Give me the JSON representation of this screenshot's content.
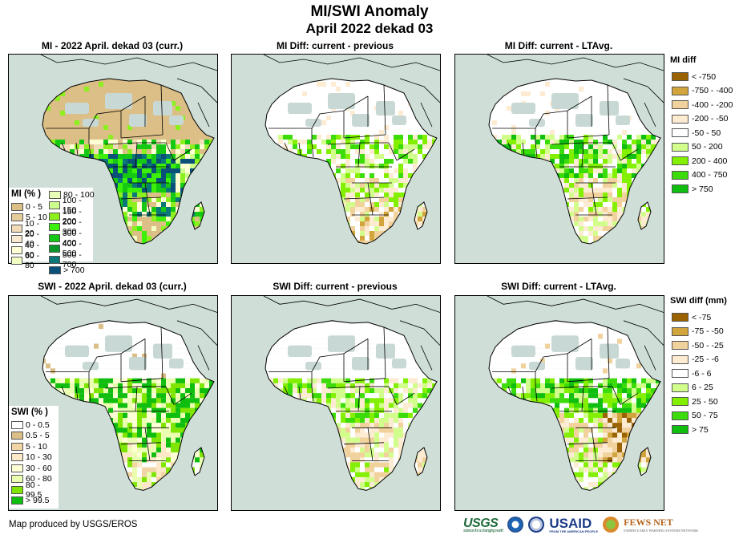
{
  "header": {
    "title": "MI/SWI Anomaly",
    "subtitle": "April 2022 dekad 03"
  },
  "colors": {
    "ocean": "#cfdfd8",
    "no_data_gray": "#c8d8d4"
  },
  "panels": [
    {
      "id": "mi-current",
      "title": "MI - 2022 April. dekad 03 (curr.)",
      "theme": "mi_current"
    },
    {
      "id": "mi-diff-previous",
      "title": "MI Diff: current - previous",
      "theme": "diff_prev"
    },
    {
      "id": "mi-diff-ltavg",
      "title": "MI Diff: current - LTAvg.",
      "theme": "diff_lta"
    },
    {
      "id": "swi-current",
      "title": "SWI - 2022 April. dekad 03 (curr.)",
      "theme": "swi_current"
    },
    {
      "id": "swi-diff-previous",
      "title": "SWI Diff: current - previous",
      "theme": "diff_prev2"
    },
    {
      "id": "swi-diff-ltavg",
      "title": "SWI Diff: current - LTAvg.",
      "theme": "swi_lta"
    }
  ],
  "legends": {
    "mi_percent": {
      "title": "MI (% )",
      "col1": [
        {
          "label": "0 - 5",
          "color": "#dcbf87"
        },
        {
          "label": "5 - 10",
          "color": "#e6cc9a"
        },
        {
          "label": "10 - 20",
          "color": "#f2dcb8"
        },
        {
          "label": "20 - 40",
          "color": "#f9e9d2"
        },
        {
          "label": "40 - 60",
          "color": "#ffffd6"
        },
        {
          "label": "60 - 80",
          "color": "#f2ffc2"
        }
      ],
      "col2": [
        {
          "label": "80 - 100",
          "color": "#e8ffb8"
        },
        {
          "label": "100 - 150",
          "color": "#ccff8c"
        },
        {
          "label": "150 - 200",
          "color": "#8cf01e"
        },
        {
          "label": "200 - 300",
          "color": "#3cf00a"
        },
        {
          "label": "300 - 400",
          "color": "#14c814"
        },
        {
          "label": "400 - 500",
          "color": "#0a9628"
        },
        {
          "label": "500 - 700",
          "color": "#0a7878"
        },
        {
          "label": "> 700",
          "color": "#0a5078"
        }
      ]
    },
    "swi_percent": {
      "title": "SWI (% )",
      "items": [
        {
          "label": "0 - 0.5",
          "color": "#ffffff"
        },
        {
          "label": "0.5 - 5",
          "color": "#dcbf87"
        },
        {
          "label": "5 - 10",
          "color": "#f2d5a5"
        },
        {
          "label": "10 - 30",
          "color": "#ffe8c8"
        },
        {
          "label": "30 - 60",
          "color": "#ffffd6"
        },
        {
          "label": "60 - 80",
          "color": "#eaffb0"
        },
        {
          "label": "80 - 99.5",
          "color": "#7ee600"
        },
        {
          "label": "> 99.5",
          "color": "#0fbe0f"
        }
      ]
    },
    "mi_diff": {
      "title": "MI diff",
      "items": [
        {
          "label": "< -750",
          "color": "#9a6200"
        },
        {
          "label": "-750 - -400",
          "color": "#d2a53c"
        },
        {
          "label": "-400 - -200",
          "color": "#f2d29c"
        },
        {
          "label": "-200 - -50",
          "color": "#fdebd2"
        },
        {
          "label": "-50 - 50",
          "color": "#ffffff"
        },
        {
          "label": "50 - 200",
          "color": "#d2ff8c"
        },
        {
          "label": "200 - 400",
          "color": "#82f000"
        },
        {
          "label": "400 - 750",
          "color": "#3cdc0a"
        },
        {
          "label": "> 750",
          "color": "#0fbe0f"
        }
      ]
    },
    "swi_diff": {
      "title": "SWI diff (mm)",
      "items": [
        {
          "label": "< -75",
          "color": "#9a6200"
        },
        {
          "label": "-75 - -50",
          "color": "#d2a53c"
        },
        {
          "label": "-50 - -25",
          "color": "#f2d29c"
        },
        {
          "label": "-25 - -6",
          "color": "#fdebd2"
        },
        {
          "label": "-6 - 6",
          "color": "#ffffff"
        },
        {
          "label": "6 - 25",
          "color": "#d2ff8c"
        },
        {
          "label": "25 - 50",
          "color": "#82f000"
        },
        {
          "label": "50 - 75",
          "color": "#3cdc0a"
        },
        {
          "label": "> 75",
          "color": "#0fbe0f"
        }
      ]
    }
  },
  "footer": {
    "credit": "Map produced by USGS/EROS"
  },
  "logos": {
    "usgs": "USGS",
    "usgs_tagline": "science for a changing world",
    "usaid": "USAID",
    "usaid_tagline": "FROM THE AMERICAN PEOPLE",
    "fews": "FEWS NET",
    "fews_tagline": "FAMINE EARLY WARNING SYSTEMS NETWORK"
  }
}
